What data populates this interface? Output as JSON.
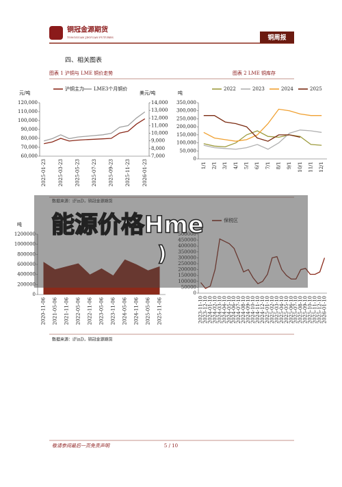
{
  "header": {
    "logo_cn": "铜冠金源期货",
    "logo_en": "TONGGUAN JINYUAN FUTURES",
    "report": "铜周报"
  },
  "section": "四、相关图表",
  "captions": [
    "图表 1 沪铜与 LME 铜价走势",
    "图表 2 LME 铜库存"
  ],
  "sources": [
    "数据来源：iFinD，铜冠金源期货",
    "数据来源：iFinD，铜冠金源期货"
  ],
  "overlay": [
    "能源价格Hme",
    ")"
  ],
  "footer": {
    "disclaimer": "敬请参阅最后一页免责声明",
    "page": "5 / 10"
  },
  "chart_data": [
    {
      "type": "line",
      "y_label": "元/吨",
      "y2_label": "美元/吨",
      "categories": [
        "2025-01-23",
        null,
        "2025-03-23",
        null,
        "2025-05-23",
        null,
        "2025-07-23",
        null,
        "2025-09-23",
        null,
        "2025-11-23",
        null,
        "2026-01-23"
      ],
      "series": [
        {
          "name": "沪铜主力",
          "color": "#8b2a1a",
          "values": [
            74000,
            76000,
            80000,
            77000,
            78000,
            78500,
            79000,
            79500,
            80000,
            86000,
            88000,
            96000,
            102000
          ]
        },
        {
          "name": "LME3个月铜价",
          "color": "#a0a0a0",
          "axis": "y2",
          "values": [
            9000,
            9300,
            9800,
            9300,
            9500,
            9600,
            9700,
            9800,
            10000,
            10800,
            11000,
            12000,
            12800
          ]
        }
      ],
      "ylim": [
        60000,
        120000
      ],
      "yticks": [
        {
          "value": 60000,
          "label": "60,000"
        },
        {
          "value": 70000,
          "label": "70,000"
        },
        {
          "value": 80000,
          "label": "80,000"
        },
        {
          "value": 90000,
          "label": "90,000"
        },
        {
          "value": 100000,
          "label": "100,000"
        },
        {
          "value": 110000,
          "label": "110,000"
        },
        {
          "value": 120000,
          "label": "120,000"
        }
      ],
      "y2lim": [
        7000,
        14000
      ],
      "y2ticks": [
        {
          "value": 7000,
          "label": "7,000"
        },
        {
          "value": 8000,
          "label": "8,000"
        },
        {
          "value": 9000,
          "label": "9,000"
        },
        {
          "value": 10000,
          "label": "10,000"
        },
        {
          "value": 11000,
          "label": "11,000"
        },
        {
          "value": 12000,
          "label": "12,000"
        },
        {
          "value": 13000,
          "label": "13,000"
        },
        {
          "value": 14000,
          "label": "14,000"
        }
      ]
    },
    {
      "type": "line",
      "y_label": "吨",
      "categories": [
        "1/1",
        "2/1",
        "3/1",
        "4/1",
        "5/1",
        "6/1",
        "7/1",
        "8/1",
        "9/1",
        "10/1",
        "11/1",
        "12/1"
      ],
      "series": [
        {
          "name": "2022",
          "color": "#9c9a3c",
          "values": [
            95000,
            80000,
            75000,
            100000,
            150000,
            175000,
            140000,
            135000,
            150000,
            140000,
            90000,
            85000
          ]
        },
        {
          "name": "2023",
          "color": "#b0b0b0",
          "values": [
            85000,
            70000,
            65000,
            60000,
            70000,
            90000,
            60000,
            100000,
            160000,
            180000,
            175000,
            165000
          ]
        },
        {
          "name": "2024",
          "color": "#f0a030",
          "values": [
            165000,
            130000,
            120000,
            110000,
            120000,
            150000,
            220000,
            310000,
            300000,
            280000,
            270000,
            270000
          ]
        },
        {
          "name": "2025",
          "color": "#7a2a10",
          "values": [
            270000,
            270000,
            230000,
            220000,
            200000,
            130000,
            110000,
            150000,
            150000,
            135000,
            null,
            null
          ]
        }
      ],
      "ylim": [
        0,
        350000
      ],
      "yticks": [
        0,
        {
          "value": 50000,
          "label": "50,000"
        },
        {
          "value": 100000,
          "label": "100,000"
        },
        {
          "value": 150000,
          "label": "150,000"
        },
        {
          "value": 200000,
          "label": "200,000"
        },
        {
          "value": 250000,
          "label": "250,000"
        },
        {
          "value": 300000,
          "label": "300,000"
        },
        {
          "value": 350000,
          "label": "350,000"
        }
      ]
    },
    {
      "type": "area",
      "y_label": "吨",
      "categories": [
        "2020-11-06",
        "2021-05-06",
        "2021-11-06",
        "2022-05-06",
        "2022-11-06",
        "2023-05-06",
        "2023-11-06",
        "2024-05-06",
        "2024-11-06",
        "2025-05-06",
        "2025-11-06"
      ],
      "series": [
        {
          "color": "#8b2a1a",
          "values": [
            650000,
            500000,
            560000,
            620000,
            400000,
            520000,
            380000,
            700000,
            600000,
            480000,
            560000
          ]
        }
      ],
      "ylim": [
        0,
        1200000
      ],
      "yticks": [
        0,
        {
          "value": 200000,
          "label": "200000"
        },
        {
          "value": 400000,
          "label": "400000"
        },
        {
          "value": 600000,
          "label": "600000"
        },
        {
          "value": 800000,
          "label": "800000"
        },
        {
          "value": 1000000,
          "label": "1000000"
        },
        {
          "value": 1200000,
          "label": "1200000"
        }
      ]
    },
    {
      "type": "line",
      "categories": [
        "2023-11-10",
        "2023-12-10",
        "2024-01-10",
        "2024-02-10",
        "2024-03-10",
        "2024-04-10",
        "2024-05-10",
        "2024-06-10",
        "2024-07-10",
        "2024-08-10",
        "2024-09-10",
        "2024-10-10",
        "2024-11-10",
        "2024-12-10",
        "2025-01-10",
        "2025-02-10",
        "2025-03-10",
        "2025-04-10",
        "2025-05-10",
        "2025-06-10",
        "2025-07-10",
        "2025-08-10",
        "2025-09-10",
        "2025-10-10",
        "2025-11-10",
        "2025-12-10",
        "2026-01-10"
      ],
      "series": [
        {
          "name": "保税区",
          "color": "#8b2a1a",
          "values": [
            90000,
            40000,
            60000,
            200000,
            460000,
            440000,
            420000,
            380000,
            280000,
            180000,
            200000,
            130000,
            80000,
            100000,
            160000,
            300000,
            310000,
            200000,
            150000,
            120000,
            120000,
            200000,
            210000,
            160000,
            160000,
            180000,
            300000
          ]
        }
      ],
      "ylim": [
        0,
        500000
      ],
      "yticks": [
        0,
        {
          "value": 50000,
          "label": "50000"
        },
        {
          "value": 100000,
          "label": "100000"
        },
        {
          "value": 150000,
          "label": "150000"
        },
        {
          "value": 200000,
          "label": "200000"
        },
        {
          "value": 250000,
          "label": "250000"
        },
        {
          "value": 300000,
          "label": "300000"
        },
        {
          "value": 350000,
          "label": "350000"
        },
        {
          "value": 400000,
          "label": "400000"
        },
        {
          "value": 450000,
          "label": "450000"
        },
        {
          "value": 500000,
          "label": "500000"
        }
      ]
    }
  ]
}
